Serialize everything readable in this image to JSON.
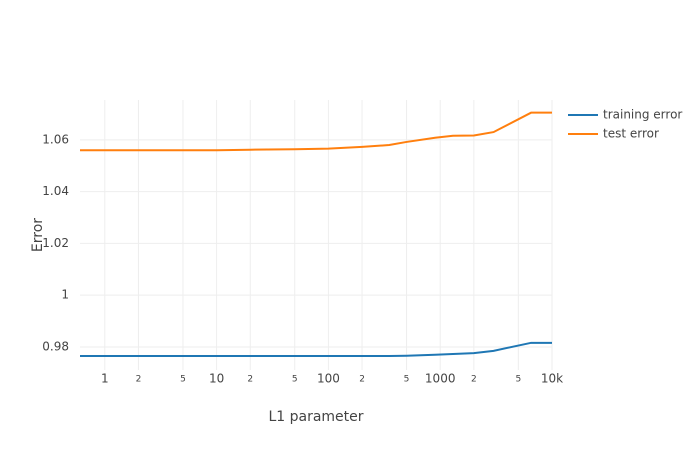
{
  "chart_data": {
    "type": "line",
    "x_label": "L1 parameter",
    "y_label": "Error",
    "x": [
      0.6,
      1,
      2,
      5,
      10,
      20,
      50,
      100,
      200,
      350,
      500,
      900,
      1300,
      2000,
      3000,
      6500,
      10000
    ],
    "series": [
      {
        "name": "training error",
        "color": "#1f77b4",
        "values": [
          0.9765,
          0.9765,
          0.9765,
          0.9765,
          0.9765,
          0.9765,
          0.9765,
          0.9765,
          0.9765,
          0.9765,
          0.9766,
          0.977,
          0.9773,
          0.9776,
          0.9785,
          0.9816,
          0.9816
        ]
      },
      {
        "name": "test error",
        "color": "#ff7f0e",
        "values": [
          1.056,
          1.056,
          1.056,
          1.056,
          1.056,
          1.0562,
          1.0564,
          1.0566,
          1.0573,
          1.058,
          1.0592,
          1.0608,
          1.0616,
          1.0617,
          1.063,
          1.0705,
          1.0705
        ]
      }
    ],
    "xlog": true,
    "xlim": [
      0.6,
      10000
    ],
    "xticks": [
      1,
      2,
      5,
      10,
      {
        "value": 20,
        "label": "2"
      },
      {
        "value": 50,
        "label": "5"
      },
      100,
      {
        "value": 200,
        "label": "2"
      },
      {
        "value": 500,
        "label": "5"
      },
      1000,
      {
        "value": 2000,
        "label": "2"
      },
      {
        "value": 5000,
        "label": "5"
      },
      {
        "value": 10000,
        "label": "10k"
      }
    ],
    "ylim": [
      0.9711,
      1.0754
    ],
    "yticks": [
      0.98,
      1,
      1.02,
      1.04,
      1.06
    ],
    "grid": true,
    "legend": "top-right"
  }
}
